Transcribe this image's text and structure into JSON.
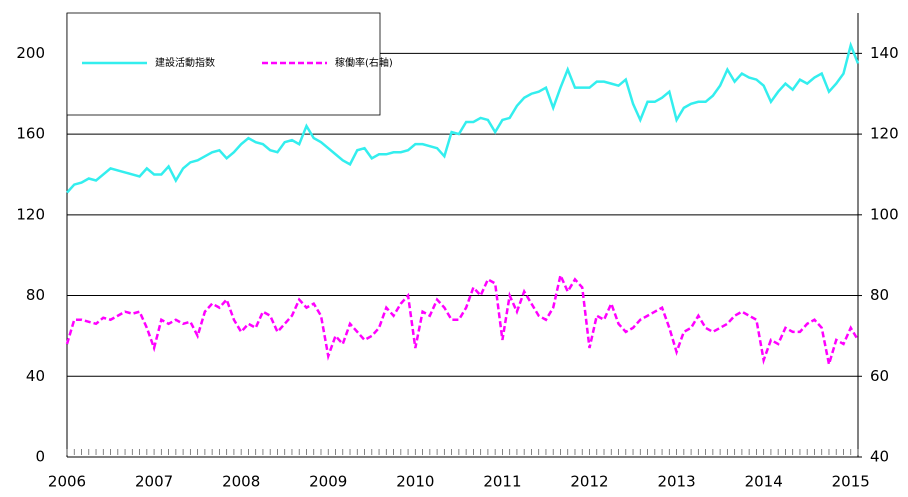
{
  "chart_data": {
    "type": "line",
    "categories": [
      "2006",
      null,
      null,
      null,
      null,
      null,
      null,
      null,
      null,
      null,
      null,
      null,
      "2007",
      null,
      null,
      null,
      null,
      null,
      null,
      null,
      null,
      null,
      null,
      null,
      "2008",
      null,
      null,
      null,
      null,
      null,
      null,
      null,
      null,
      null,
      null,
      null,
      "2009",
      null,
      null,
      null,
      null,
      null,
      null,
      null,
      null,
      null,
      null,
      null,
      "2010",
      null,
      null,
      null,
      null,
      null,
      null,
      null,
      null,
      null,
      null,
      null,
      "2011",
      null,
      null,
      null,
      null,
      null,
      null,
      null,
      null,
      null,
      null,
      null,
      "2012",
      null,
      null,
      null,
      null,
      null,
      null,
      null,
      null,
      null,
      null,
      null,
      "2013",
      null,
      null,
      null,
      null,
      null,
      null,
      null,
      null,
      null,
      null,
      null,
      "2014",
      null,
      null,
      null,
      null,
      null,
      null,
      null,
      null,
      null,
      null,
      null,
      "2015",
      null
    ],
    "series": [
      {
        "name": "建設活動指数",
        "color": "#33eeee",
        "line_style": "solid",
        "values": [
          131,
          135,
          136,
          138,
          137,
          140,
          143,
          142,
          141,
          140,
          139,
          143,
          140,
          140,
          144,
          137,
          143,
          146,
          147,
          149,
          151,
          152,
          148,
          151,
          155,
          158,
          156,
          155,
          152,
          151,
          156,
          157,
          155,
          164,
          158,
          156,
          153,
          150,
          147,
          145,
          152,
          153,
          148,
          150,
          150,
          151,
          151,
          152,
          155,
          155,
          154,
          153,
          149,
          161,
          160,
          166,
          166,
          168,
          167,
          161,
          167,
          168,
          174,
          178,
          180,
          181,
          183,
          173,
          183,
          192,
          183,
          183,
          183,
          186,
          186,
          185,
          184,
          187,
          175,
          167,
          176,
          176,
          178,
          181,
          167,
          173,
          175,
          176,
          176,
          179,
          184,
          192,
          186,
          190,
          188,
          187,
          184,
          176,
          181,
          185,
          182,
          187,
          185,
          188,
          190,
          181,
          185,
          190,
          204,
          195
        ]
      },
      {
        "name": "稼働率(右軸)",
        "color": "#ff00ff",
        "line_style": "dashed",
        "axis": "y2",
        "values": [
          68,
          74,
          74,
          73.5,
          73,
          74.5,
          74,
          75,
          76,
          75.5,
          76,
          72,
          67,
          74,
          73,
          74,
          73,
          73.5,
          70,
          76,
          78,
          77,
          79,
          74,
          71,
          73,
          72,
          76,
          75,
          71,
          73,
          75,
          79,
          77,
          78,
          75,
          65,
          70,
          68,
          73,
          71,
          69,
          70,
          72,
          77,
          75,
          78,
          80,
          67,
          76,
          75,
          79,
          77,
          74,
          74,
          77,
          82,
          80,
          84,
          83,
          69,
          80,
          76,
          81,
          78,
          75,
          74,
          77,
          85,
          81,
          84,
          82,
          67,
          75,
          74,
          78,
          73,
          71,
          72,
          74,
          75,
          76,
          77,
          72,
          66,
          71,
          72,
          75,
          72,
          71,
          72,
          73,
          75,
          76,
          75,
          74,
          64,
          69,
          68,
          72,
          71,
          71,
          73,
          74,
          72,
          63,
          69,
          68,
          72,
          69
        ]
      }
    ],
    "ylim": [
      0,
      220
    ],
    "yticks": [
      0,
      40,
      80,
      120,
      160,
      200
    ],
    "y2lim": [
      40,
      150
    ],
    "y2ticks": [
      40,
      60,
      80,
      100,
      120,
      140
    ],
    "grid": true,
    "legend": "top-left"
  }
}
